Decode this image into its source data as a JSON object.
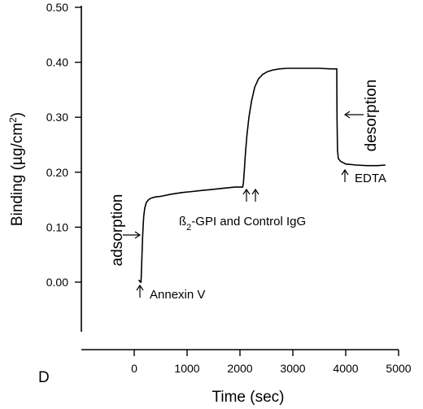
{
  "panel_letter": "D",
  "chart_data": {
    "type": "line",
    "xlabel": "Time (sec)",
    "ylabel": "Binding (µg/cm²)",
    "xlim": [
      -1000,
      5000
    ],
    "ylim": [
      -0.1,
      0.5
    ],
    "x_ticks": [
      0,
      1000,
      2000,
      3000,
      4000,
      5000
    ],
    "y_ticks": [
      0.0,
      0.1,
      0.2,
      0.3,
      0.4,
      0.5
    ],
    "y_tick_labels": [
      "0.00",
      "0.10",
      "0.20",
      "0.30",
      "0.40",
      "0.50"
    ],
    "grid": false,
    "series": [
      {
        "x": [
          80,
          100,
          115,
          130,
          140,
          150,
          160,
          170,
          180,
          200,
          230,
          270,
          320,
          400,
          500,
          700,
          900,
          1100,
          1300,
          1500,
          1700,
          1900,
          2050,
          2065,
          2080,
          2100,
          2130,
          2170,
          2220,
          2280,
          2350,
          2430,
          2520,
          2620,
          2750,
          2900,
          3100,
          3300,
          3500,
          3700,
          3830,
          3835,
          3845,
          3860,
          3900,
          4000,
          4200,
          4400,
          4600,
          4750
        ],
        "y": [
          0.003,
          0.003,
          0.0,
          0.0,
          0.03,
          0.06,
          0.085,
          0.105,
          0.12,
          0.135,
          0.145,
          0.15,
          0.153,
          0.155,
          0.156,
          0.16,
          0.163,
          0.165,
          0.167,
          0.169,
          0.171,
          0.173,
          0.173,
          0.18,
          0.2,
          0.23,
          0.265,
          0.3,
          0.33,
          0.355,
          0.37,
          0.378,
          0.383,
          0.386,
          0.388,
          0.389,
          0.389,
          0.389,
          0.389,
          0.388,
          0.388,
          0.3,
          0.24,
          0.225,
          0.22,
          0.215,
          0.213,
          0.212,
          0.212,
          0.213
        ]
      }
    ],
    "annotations": [
      {
        "text": "adsorption",
        "x": 50,
        "y": 0.075
      },
      {
        "text": "Annexin V",
        "x": 100,
        "y": -0.02
      },
      {
        "text": "ß₂-GPI and Control IgG",
        "x": 2100,
        "y": 0.12
      },
      {
        "text": "desorption",
        "x": 3950,
        "y": 0.3
      },
      {
        "text": "EDTA",
        "x": 3850,
        "y": 0.19
      }
    ]
  }
}
